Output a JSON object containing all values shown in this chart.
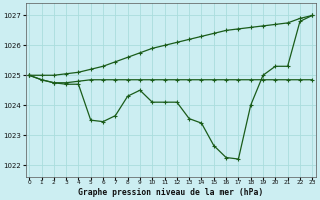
{
  "bg_color": "#cceef2",
  "grid_color": "#aadddd",
  "line_color": "#1a5c1a",
  "title": "Graphe pression niveau de la mer (hPa)",
  "hours": [
    0,
    1,
    2,
    3,
    4,
    5,
    6,
    7,
    8,
    9,
    10,
    11,
    12,
    13,
    14,
    15,
    16,
    17,
    18,
    19,
    20,
    21,
    22,
    23
  ],
  "ylim": [
    1021.6,
    1027.4
  ],
  "yticks": [
    1022,
    1023,
    1024,
    1025,
    1026,
    1027
  ],
  "line_dip": [
    1025.0,
    1024.85,
    1024.75,
    1024.7,
    1024.7,
    1023.5,
    1023.45,
    1023.65,
    1024.3,
    1024.5,
    1024.1,
    1024.1,
    1024.1,
    1023.55,
    1023.4,
    1022.65,
    1022.25,
    1022.2,
    1024.0,
    1025.0,
    1025.3,
    1025.3,
    1026.8,
    1027.0
  ],
  "line_flat": [
    1025.0,
    1024.85,
    1024.75,
    1024.75,
    1024.8,
    1024.85,
    1024.85,
    1024.85,
    1024.85,
    1024.85,
    1024.85,
    1024.85,
    1024.85,
    1024.85,
    1024.85,
    1024.85,
    1024.85,
    1024.85,
    1024.85,
    1024.85,
    1024.85,
    1024.85,
    1024.85,
    1024.85
  ],
  "line_rise": [
    1025.0,
    1025.0,
    1025.0,
    1025.05,
    1025.1,
    1025.2,
    1025.3,
    1025.45,
    1025.6,
    1025.75,
    1025.9,
    1026.0,
    1026.1,
    1026.2,
    1026.3,
    1026.4,
    1026.5,
    1026.55,
    1026.6,
    1026.65,
    1026.7,
    1026.75,
    1026.9,
    1027.0
  ]
}
